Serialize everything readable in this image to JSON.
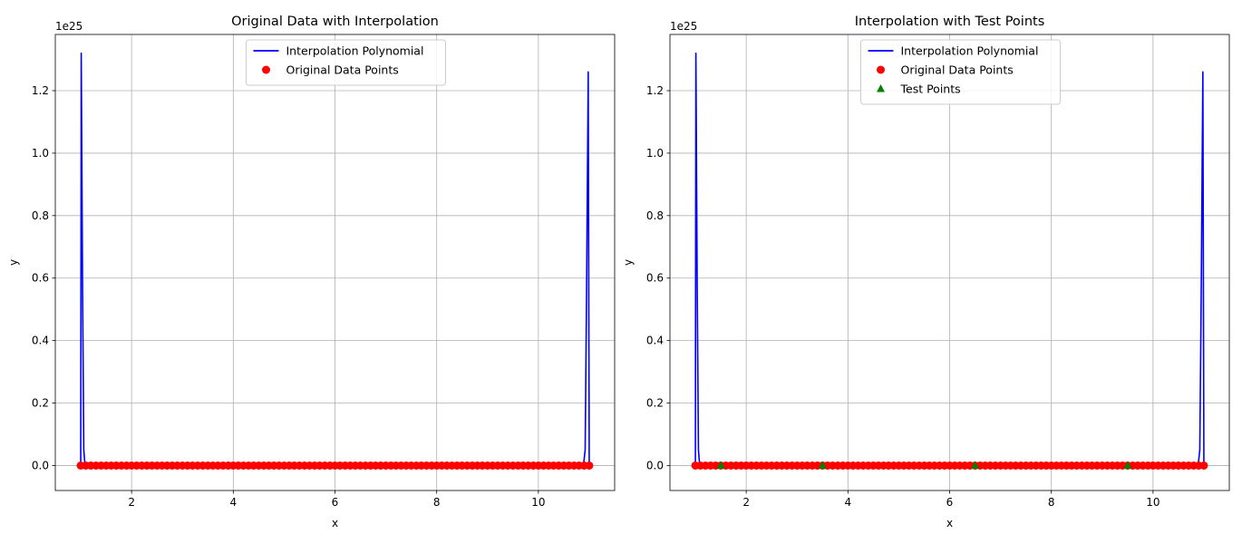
{
  "chart_data": [
    {
      "type": "line",
      "title": "Original Data with Interpolation",
      "xlabel": "x",
      "ylabel": "y",
      "y_offset_label": "1e25",
      "xlim": [
        0.5,
        11.5
      ],
      "ylim": [
        -0.08,
        1.38
      ],
      "x_ticks": [
        2,
        4,
        6,
        8,
        10
      ],
      "x_tick_labels": [
        "2",
        "4",
        "6",
        "8",
        "10"
      ],
      "y_ticks": [
        0.0,
        0.2,
        0.4,
        0.6,
        0.8,
        1.0,
        1.2
      ],
      "y_tick_labels": [
        "0.0",
        "0.2",
        "0.4",
        "0.6",
        "0.8",
        "1.0",
        "1.2"
      ],
      "grid": true,
      "legend_position": "top-center",
      "legend": [
        {
          "label": "Interpolation Polynomial",
          "marker": "line",
          "color": "#0000ff"
        },
        {
          "label": "Original Data Points",
          "marker": "circle",
          "color": "#ff0000"
        }
      ],
      "series": [
        {
          "name": "Interpolation Polynomial",
          "kind": "line",
          "color": "#0000ff",
          "x": [
            1.0,
            1.01,
            1.035,
            1.06,
            1.09,
            1.11,
            1.2,
            2,
            4,
            6,
            8,
            10,
            10.8,
            10.88,
            10.92,
            10.95,
            10.98,
            11.0
          ],
          "y": [
            0.0,
            1.32,
            0.6,
            0.05,
            -0.01,
            0.0,
            0.0,
            0.0,
            0.0,
            0.0,
            0.0,
            0.0,
            0.0,
            -0.01,
            0.05,
            0.6,
            1.26,
            0.0
          ]
        },
        {
          "name": "Original Data Points",
          "kind": "scatter",
          "marker": "circle",
          "color": "#ff0000",
          "x_start": 1.0,
          "x_end": 11.0,
          "count": 101,
          "y": 0.0
        }
      ]
    },
    {
      "type": "line",
      "title": "Interpolation with Test Points",
      "xlabel": "x",
      "ylabel": "y",
      "y_offset_label": "1e25",
      "xlim": [
        0.5,
        11.5
      ],
      "ylim": [
        -0.08,
        1.38
      ],
      "x_ticks": [
        2,
        4,
        6,
        8,
        10
      ],
      "x_tick_labels": [
        "2",
        "4",
        "6",
        "8",
        "10"
      ],
      "y_ticks": [
        0.0,
        0.2,
        0.4,
        0.6,
        0.8,
        1.0,
        1.2
      ],
      "y_tick_labels": [
        "0.0",
        "0.2",
        "0.4",
        "0.6",
        "0.8",
        "1.0",
        "1.2"
      ],
      "grid": true,
      "legend_position": "top-center",
      "legend": [
        {
          "label": "Interpolation Polynomial",
          "marker": "line",
          "color": "#0000ff"
        },
        {
          "label": "Original Data Points",
          "marker": "circle",
          "color": "#ff0000"
        },
        {
          "label": "Test Points",
          "marker": "triangle",
          "color": "#008000"
        }
      ],
      "series": [
        {
          "name": "Interpolation Polynomial",
          "kind": "line",
          "color": "#0000ff",
          "x": [
            1.0,
            1.01,
            1.035,
            1.06,
            1.09,
            1.11,
            1.2,
            2,
            4,
            6,
            8,
            10,
            10.8,
            10.88,
            10.92,
            10.95,
            10.98,
            11.0
          ],
          "y": [
            0.0,
            1.32,
            0.6,
            0.05,
            -0.01,
            0.0,
            0.0,
            0.0,
            0.0,
            0.0,
            0.0,
            0.0,
            0.0,
            -0.01,
            0.05,
            0.6,
            1.26,
            0.0
          ]
        },
        {
          "name": "Original Data Points",
          "kind": "scatter",
          "marker": "circle",
          "color": "#ff0000",
          "x_start": 1.0,
          "x_end": 11.0,
          "count": 101,
          "y": 0.0
        },
        {
          "name": "Test Points",
          "kind": "scatter",
          "marker": "triangle",
          "color": "#008000",
          "x": [
            1.5,
            3.5,
            6.5,
            9.5
          ],
          "y": [
            0.0,
            0.0,
            0.0,
            0.0
          ]
        }
      ]
    }
  ]
}
